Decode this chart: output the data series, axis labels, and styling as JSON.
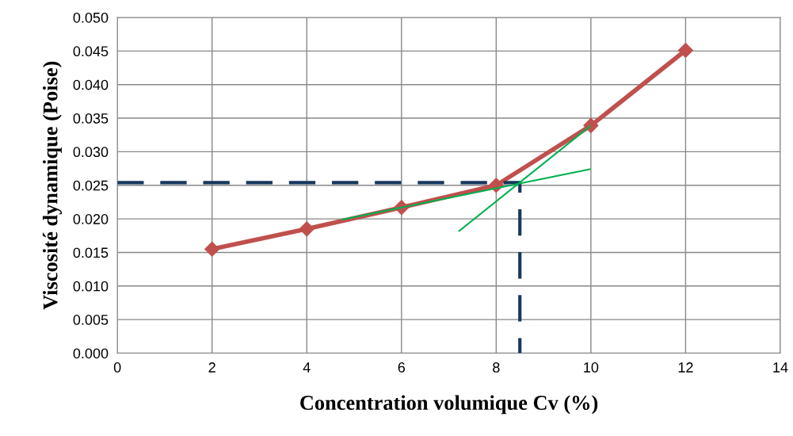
{
  "chart_data": {
    "type": "line",
    "xlabel": "Concentration volumique Cv (%)",
    "ylabel": "Viscosité dynamique (Poise)",
    "xlim": [
      0,
      14
    ],
    "xticks": [
      0,
      2,
      4,
      6,
      8,
      10,
      12,
      14
    ],
    "ylim": [
      0,
      0.05
    ],
    "yticks": [
      {
        "value": 0,
        "label": "0.000"
      },
      {
        "value": 0.005,
        "label": "0.005"
      },
      {
        "value": 0.01,
        "label": "0.010"
      },
      {
        "value": 0.015,
        "label": "0.015"
      },
      {
        "value": 0.02,
        "label": "0.020"
      },
      {
        "value": 0.025,
        "label": "0.025"
      },
      {
        "value": 0.03,
        "label": "0.030"
      },
      {
        "value": 0.035,
        "label": "0.035"
      },
      {
        "value": 0.04,
        "label": "0.040"
      },
      {
        "value": 0.045,
        "label": "0.045"
      },
      {
        "value": 0.05,
        "label": "0.050"
      }
    ],
    "grid": true,
    "series": [
      {
        "color": "#c0504d",
        "line_style": "solid",
        "marker": "diamond",
        "x": [
          2,
          4,
          6,
          8,
          10,
          12
        ],
        "values": [
          0.0155,
          0.0185,
          0.0217,
          0.025,
          0.0339,
          0.0451
        ]
      },
      {
        "color": "#17375e",
        "line_style": "dashed",
        "marker": "none",
        "x": [
          0,
          8.5,
          8.5
        ],
        "values": [
          0.0254,
          0.0254,
          0
        ]
      },
      {
        "color": "#00b050",
        "line_style": "solid",
        "marker": "none",
        "x": [
          4.75,
          9.98
        ],
        "values": [
          0.0199,
          0.0274
        ]
      },
      {
        "color": "#00b050",
        "line_style": "solid",
        "marker": "none",
        "x": [
          7.22,
          9.98
        ],
        "values": [
          0.0182,
          0.0338
        ]
      }
    ]
  }
}
